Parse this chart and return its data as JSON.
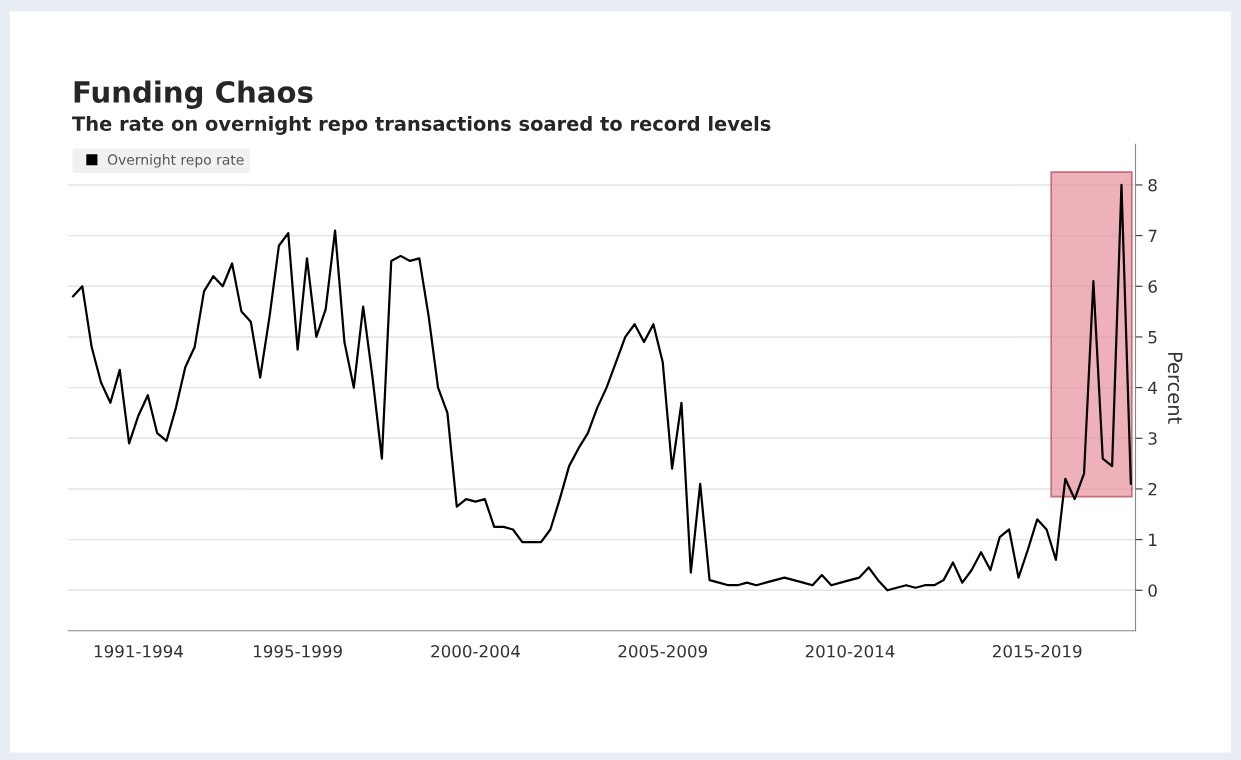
{
  "chart_data": {
    "type": "line",
    "title": "Funding Chaos",
    "subtitle": "The rate on overnight repo transactions soared to record levels",
    "ylabel": "Percent",
    "categories": [
      null,
      null,
      null,
      null,
      null,
      null,
      null,
      "1991-1994",
      null,
      null,
      null,
      null,
      null,
      null,
      null,
      null,
      null,
      null,
      null,
      null,
      null,
      null,
      null,
      null,
      "1995-1999",
      null,
      null,
      null,
      null,
      null,
      null,
      null,
      null,
      null,
      null,
      null,
      null,
      null,
      null,
      null,
      null,
      null,
      null,
      "2000-2004",
      null,
      null,
      null,
      null,
      null,
      null,
      null,
      null,
      null,
      null,
      null,
      null,
      null,
      null,
      null,
      null,
      null,
      null,
      null,
      "2005-2009",
      null,
      null,
      null,
      null,
      null,
      null,
      null,
      null,
      null,
      null,
      null,
      null,
      null,
      null,
      null,
      null,
      null,
      null,
      null,
      "2010-2014",
      null,
      null,
      null,
      null,
      null,
      null,
      null,
      null,
      null,
      null,
      null,
      null,
      null,
      null,
      null,
      null,
      null,
      null,
      null,
      "2015-2019",
      null,
      null,
      null,
      null,
      null,
      null,
      null,
      null,
      null,
      null
    ],
    "series": [
      {
        "name": "Overnight repo rate",
        "color": "#000000",
        "values": [
          5.8,
          6.0,
          4.8,
          4.1,
          3.7,
          4.35,
          2.9,
          3.45,
          3.85,
          3.1,
          2.95,
          3.6,
          4.4,
          4.8,
          5.9,
          6.2,
          6.0,
          6.45,
          5.5,
          5.3,
          4.2,
          5.4,
          6.8,
          7.05,
          4.75,
          6.55,
          5.0,
          5.55,
          7.1,
          4.9,
          4.0,
          5.6,
          4.2,
          2.6,
          6.5,
          6.6,
          6.5,
          6.55,
          5.4,
          4.0,
          3.5,
          1.65,
          1.8,
          1.75,
          1.8,
          1.25,
          1.25,
          1.2,
          0.95,
          0.95,
          0.95,
          1.2,
          1.8,
          2.45,
          2.8,
          3.1,
          3.6,
          4.0,
          4.5,
          5.0,
          5.25,
          4.9,
          5.25,
          4.5,
          2.4,
          3.7,
          0.35,
          2.1,
          0.2,
          0.15,
          0.1,
          0.1,
          0.15,
          0.1,
          0.15,
          0.2,
          0.25,
          0.2,
          0.15,
          0.1,
          0.3,
          0.1,
          0.15,
          0.2,
          0.25,
          0.45,
          0.2,
          0.0,
          0.05,
          0.1,
          0.05,
          0.1,
          0.1,
          0.2,
          0.55,
          0.15,
          0.4,
          0.75,
          0.4,
          1.05,
          1.2,
          0.25,
          0.8,
          1.4,
          1.2,
          0.6,
          2.2,
          1.8,
          2.3,
          6.1,
          2.6,
          2.45,
          8.0,
          2.1
        ]
      }
    ],
    "ylim": [
      -0.8,
      8.8
    ],
    "yticks": [
      0,
      1,
      2,
      3,
      4,
      5,
      6,
      7,
      8
    ],
    "grid": "y",
    "legend": "top left",
    "marker": "none",
    "line_style": "solid"
  }
}
